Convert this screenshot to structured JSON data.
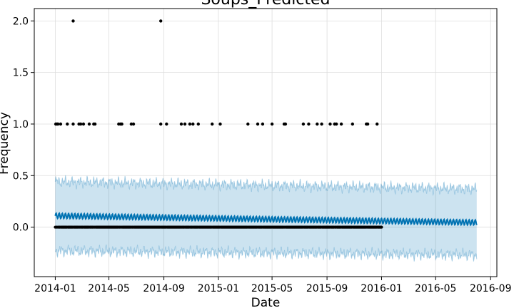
{
  "chart_data": {
    "type": "scatter",
    "title": "Soups_Predicted",
    "xlabel": "Date",
    "ylabel": "Frequency",
    "xlim": [
      "2013-11-15",
      "2016-09-15"
    ],
    "ylim": [
      -0.48,
      2.12
    ],
    "x_ticks": [
      "2014-01",
      "2014-05",
      "2014-09",
      "2015-01",
      "2015-05",
      "2015-09",
      "2016-01",
      "2016-05",
      "2016-09"
    ],
    "y_ticks": [
      0.0,
      0.5,
      1.0,
      1.5,
      2.0
    ],
    "y_tick_labels": [
      "0.0",
      "0.5",
      "1.0",
      "1.5",
      "2.0"
    ],
    "grid": true,
    "colors": {
      "forecast_line": "#0072b2",
      "uncertainty_band": "#0072b2",
      "observed_points": "#000000",
      "grid": "#dddddd"
    },
    "forecast": {
      "start": "2014-01-01",
      "end": "2016-08-01",
      "trend_start": 0.11,
      "trend_end": 0.045,
      "weekly_amplitude": 0.025,
      "upper_start": 0.44,
      "upper_end": 0.37,
      "lower_start": -0.23,
      "lower_end": -0.27
    },
    "observed": {
      "start": "2014-01-01",
      "end": "2016-01-01",
      "baseline_value": 0,
      "points_value_1": [
        "2014-01-02",
        "2014-01-05",
        "2014-01-07",
        "2014-01-13",
        "2014-01-28",
        "2014-02-10",
        "2014-02-23",
        "2014-02-27",
        "2014-03-05",
        "2014-03-18",
        "2014-03-28",
        "2014-03-31",
        "2014-05-23",
        "2014-05-27",
        "2014-05-30",
        "2014-06-20",
        "2014-06-25",
        "2014-08-25",
        "2014-09-07",
        "2014-10-10",
        "2014-10-18",
        "2014-10-29",
        "2014-11-05",
        "2014-11-17",
        "2014-12-18",
        "2015-01-05",
        "2015-03-08",
        "2015-03-30",
        "2015-04-10",
        "2015-05-01",
        "2015-05-28",
        "2015-05-31",
        "2015-07-10",
        "2015-07-22",
        "2015-08-10",
        "2015-08-20",
        "2015-09-08",
        "2015-09-18",
        "2015-09-22",
        "2015-10-03",
        "2015-10-28",
        "2015-11-28",
        "2015-12-01",
        "2015-12-22"
      ],
      "points_value_2": [
        "2014-02-10",
        "2014-08-25"
      ]
    }
  }
}
